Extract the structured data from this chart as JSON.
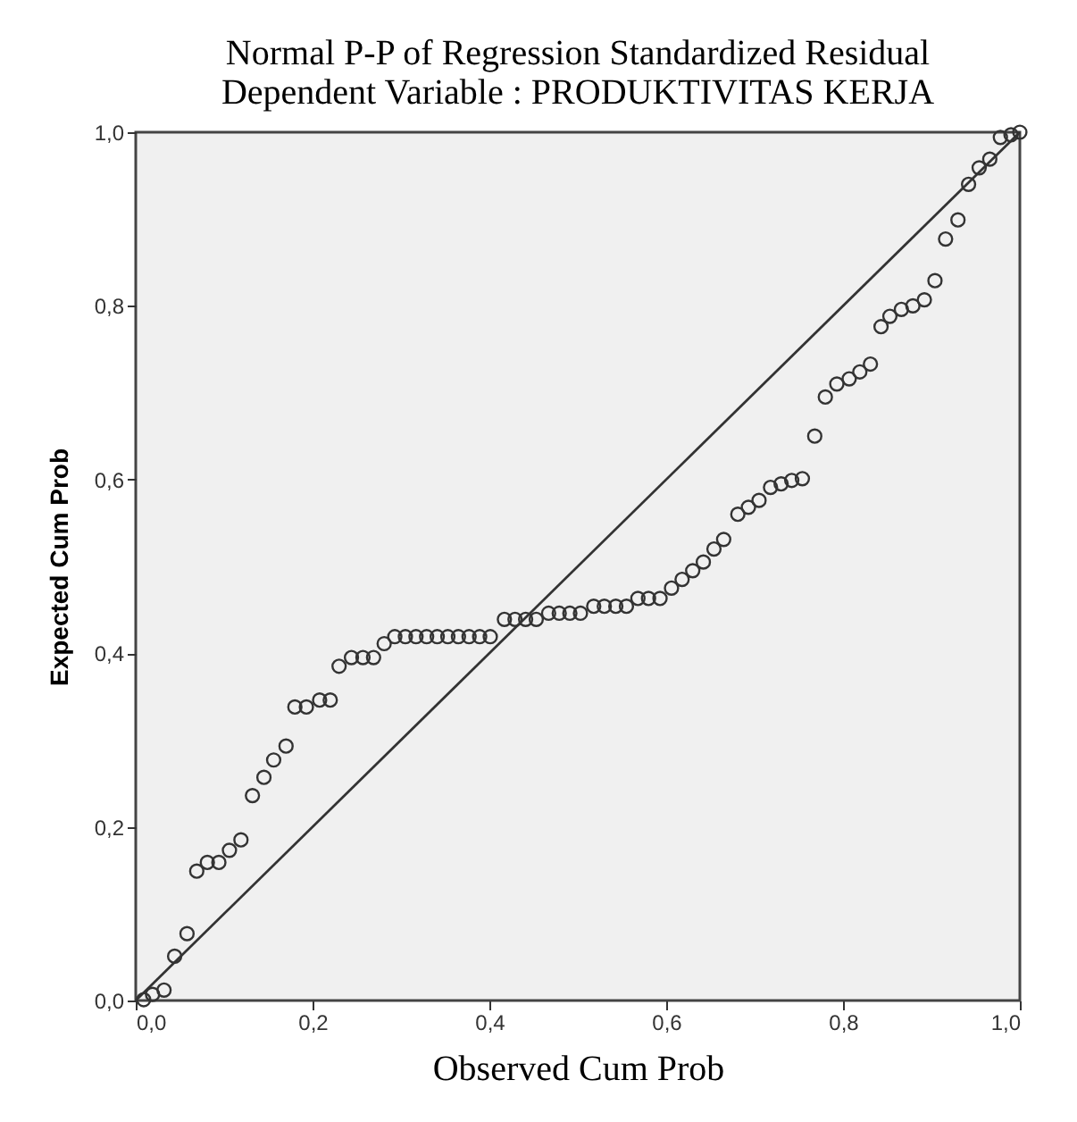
{
  "chart_data": {
    "type": "scatter",
    "title": "Normal P-P of Regression Standardized Residual",
    "subtitle": "Dependent Variable : PRODUKTIVITAS KERJA",
    "xlabel": "Observed Cum Prob",
    "ylabel": "Expected Cum Prob",
    "xlim": [
      0,
      1
    ],
    "ylim": [
      0,
      1
    ],
    "xticks": [
      {
        "value": 0,
        "label": "0,0"
      },
      {
        "value": 0.2,
        "label": "0,2"
      },
      {
        "value": 0.4,
        "label": "0,4"
      },
      {
        "value": 0.6,
        "label": "0,6"
      },
      {
        "value": 0.8,
        "label": "0,8"
      },
      {
        "value": 1,
        "label": "1,0"
      }
    ],
    "yticks": [
      {
        "value": 0,
        "label": "0,0"
      },
      {
        "value": 0.2,
        "label": "0,2"
      },
      {
        "value": 0.4,
        "label": "0,4"
      },
      {
        "value": 0.6,
        "label": "0,6"
      },
      {
        "value": 0.8,
        "label": "0,8"
      },
      {
        "value": 1,
        "label": "1,0"
      }
    ],
    "grid": false,
    "series": [
      {
        "marker": "circle",
        "color": "#333333",
        "x": [
          0.009,
          0.019,
          0.032,
          0.044,
          0.058,
          0.069,
          0.081,
          0.094,
          0.106,
          0.119,
          0.132,
          0.145,
          0.156,
          0.17,
          0.18,
          0.193,
          0.208,
          0.22,
          0.23,
          0.244,
          0.257,
          0.269,
          0.281,
          0.293,
          0.305,
          0.317,
          0.329,
          0.341,
          0.353,
          0.365,
          0.377,
          0.389,
          0.401,
          0.417,
          0.429,
          0.441,
          0.453,
          0.467,
          0.479,
          0.491,
          0.503,
          0.518,
          0.53,
          0.543,
          0.555,
          0.568,
          0.58,
          0.593,
          0.606,
          0.618,
          0.63,
          0.642,
          0.654,
          0.665,
          0.681,
          0.693,
          0.705,
          0.718,
          0.73,
          0.742,
          0.754,
          0.768,
          0.78,
          0.793,
          0.807,
          0.819,
          0.831,
          0.843,
          0.853,
          0.866,
          0.879,
          0.892,
          0.904,
          0.916,
          0.93,
          0.942,
          0.954,
          0.966,
          0.978,
          0.99,
          1.0
        ],
        "values": [
          0.001,
          0.007,
          0.012,
          0.051,
          0.077,
          0.149,
          0.159,
          0.159,
          0.173,
          0.185,
          0.236,
          0.257,
          0.277,
          0.293,
          0.338,
          0.338,
          0.346,
          0.346,
          0.385,
          0.395,
          0.395,
          0.395,
          0.411,
          0.419,
          0.419,
          0.419,
          0.419,
          0.419,
          0.419,
          0.419,
          0.419,
          0.419,
          0.419,
          0.439,
          0.439,
          0.439,
          0.439,
          0.446,
          0.446,
          0.446,
          0.446,
          0.454,
          0.454,
          0.454,
          0.454,
          0.463,
          0.463,
          0.463,
          0.475,
          0.485,
          0.495,
          0.505,
          0.52,
          0.531,
          0.56,
          0.568,
          0.576,
          0.591,
          0.595,
          0.599,
          0.601,
          0.65,
          0.695,
          0.71,
          0.716,
          0.724,
          0.733,
          0.776,
          0.788,
          0.796,
          0.8,
          0.807,
          0.829,
          0.877,
          0.899,
          0.94,
          0.959,
          0.969,
          0.994,
          0.997,
          1.0
        ]
      },
      {
        "type": "line",
        "color": "#333333",
        "x": [
          0,
          1
        ],
        "values": [
          0,
          1
        ]
      }
    ]
  }
}
